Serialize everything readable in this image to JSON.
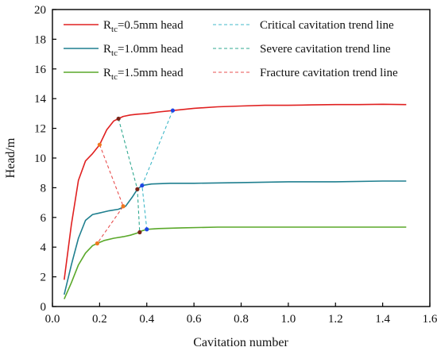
{
  "chart_data": {
    "type": "line",
    "xlabel": "Cavitation number",
    "ylabel": "Head/m",
    "xlim": [
      0.0,
      1.6
    ],
    "ylim": [
      0,
      20
    ],
    "x_ticks": [
      "0.0",
      "0.2",
      "0.4",
      "0.6",
      "0.8",
      "1.0",
      "1.2",
      "1.4",
      "1.6"
    ],
    "y_ticks": [
      "0",
      "2",
      "4",
      "6",
      "8",
      "10",
      "12",
      "14",
      "16",
      "18",
      "20"
    ],
    "grid": false,
    "legend_placement": "top",
    "series": [
      {
        "name_main": "R",
        "name_sub": "tc",
        "name_rest": "=0.5mm head",
        "color": "#e02020",
        "style": "solid",
        "x": [
          0.05,
          0.08,
          0.11,
          0.14,
          0.17,
          0.2,
          0.23,
          0.26,
          0.28,
          0.3,
          0.33,
          0.36,
          0.4,
          0.45,
          0.51,
          0.6,
          0.7,
          0.8,
          0.9,
          1.0,
          1.1,
          1.2,
          1.3,
          1.4,
          1.5
        ],
        "y": [
          1.8,
          5.5,
          8.5,
          9.8,
          10.3,
          10.9,
          11.9,
          12.5,
          12.65,
          12.8,
          12.9,
          12.95,
          13.0,
          13.1,
          13.2,
          13.35,
          13.45,
          13.5,
          13.55,
          13.55,
          13.58,
          13.6,
          13.6,
          13.62,
          13.6
        ]
      },
      {
        "name_main": "R",
        "name_sub": "tc",
        "name_rest": "=1.0mm head",
        "color": "#1f7f8f",
        "style": "solid",
        "x": [
          0.05,
          0.08,
          0.11,
          0.14,
          0.17,
          0.2,
          0.24,
          0.28,
          0.31,
          0.34,
          0.36,
          0.38,
          0.42,
          0.5,
          0.6,
          0.8,
          1.0,
          1.2,
          1.4,
          1.5
        ],
        "y": [
          0.8,
          2.8,
          4.6,
          5.8,
          6.2,
          6.3,
          6.45,
          6.55,
          6.75,
          7.4,
          7.9,
          8.15,
          8.25,
          8.3,
          8.3,
          8.35,
          8.4,
          8.4,
          8.45,
          8.45
        ]
      },
      {
        "name_main": "R",
        "name_sub": "tc",
        "name_rest": "=1.5mm head",
        "color": "#5aa82a",
        "style": "solid",
        "x": [
          0.05,
          0.08,
          0.11,
          0.14,
          0.17,
          0.19,
          0.22,
          0.26,
          0.3,
          0.33,
          0.36,
          0.38,
          0.4,
          0.45,
          0.55,
          0.7,
          0.9,
          1.1,
          1.3,
          1.5
        ],
        "y": [
          0.5,
          1.6,
          2.8,
          3.6,
          4.1,
          4.25,
          4.45,
          4.6,
          4.7,
          4.8,
          4.95,
          5.1,
          5.2,
          5.25,
          5.3,
          5.35,
          5.35,
          5.35,
          5.35,
          5.35
        ]
      },
      {
        "name": "Critical cavitation trend line",
        "color": "#40b8c8",
        "style": "dashed",
        "x": [
          0.51,
          0.38,
          0.4
        ],
        "y": [
          13.2,
          8.15,
          5.2
        ]
      },
      {
        "name": "Severe cavitation trend line",
        "color": "#30a890",
        "style": "dashed",
        "x": [
          0.28,
          0.36,
          0.37
        ],
        "y": [
          12.65,
          7.9,
          5.0
        ]
      },
      {
        "name": "Fracture cavitation trend line",
        "color": "#e85050",
        "style": "dashed",
        "x": [
          0.2,
          0.3,
          0.19
        ],
        "y": [
          10.9,
          6.75,
          4.25
        ]
      }
    ],
    "markers": [
      {
        "x": 0.51,
        "y": 13.2,
        "color": "#1e46e6"
      },
      {
        "x": 0.38,
        "y": 8.15,
        "color": "#1e46e6"
      },
      {
        "x": 0.4,
        "y": 5.2,
        "color": "#1e46e6"
      },
      {
        "x": 0.28,
        "y": 12.65,
        "color": "#7a2418"
      },
      {
        "x": 0.36,
        "y": 7.9,
        "color": "#7a2418"
      },
      {
        "x": 0.37,
        "y": 5.0,
        "color": "#7a2418"
      },
      {
        "x": 0.2,
        "y": 10.9,
        "color": "#f07820"
      },
      {
        "x": 0.3,
        "y": 6.75,
        "color": "#f07820"
      },
      {
        "x": 0.19,
        "y": 4.25,
        "color": "#f07820"
      }
    ]
  }
}
